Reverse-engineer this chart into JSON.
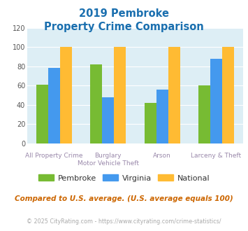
{
  "title_line1": "2019 Pembroke",
  "title_line2": "Property Crime Comparison",
  "title_color": "#1a6faf",
  "pembroke": [
    61,
    82,
    42,
    60
  ],
  "virginia": [
    78,
    48,
    56,
    88
  ],
  "national": [
    100,
    100,
    100,
    100
  ],
  "pembroke_color": "#77bb33",
  "virginia_color": "#4499ee",
  "national_color": "#ffbb33",
  "ylim": [
    0,
    120
  ],
  "yticks": [
    0,
    20,
    40,
    60,
    80,
    100,
    120
  ],
  "bg_color": "#ddeef5",
  "footnote": "Compared to U.S. average. (U.S. average equals 100)",
  "footnote_color": "#cc6600",
  "copyright": "© 2025 CityRating.com - https://www.cityrating.com/crime-statistics/",
  "copyright_color": "#aaaaaa",
  "legend_labels": [
    "Pembroke",
    "Virginia",
    "National"
  ],
  "xlabel_top": [
    "",
    "Burglary",
    "Arson",
    ""
  ],
  "xlabel_bot": [
    "All Property Crime",
    "Motor Vehicle Theft",
    "",
    "Larceny & Theft"
  ]
}
